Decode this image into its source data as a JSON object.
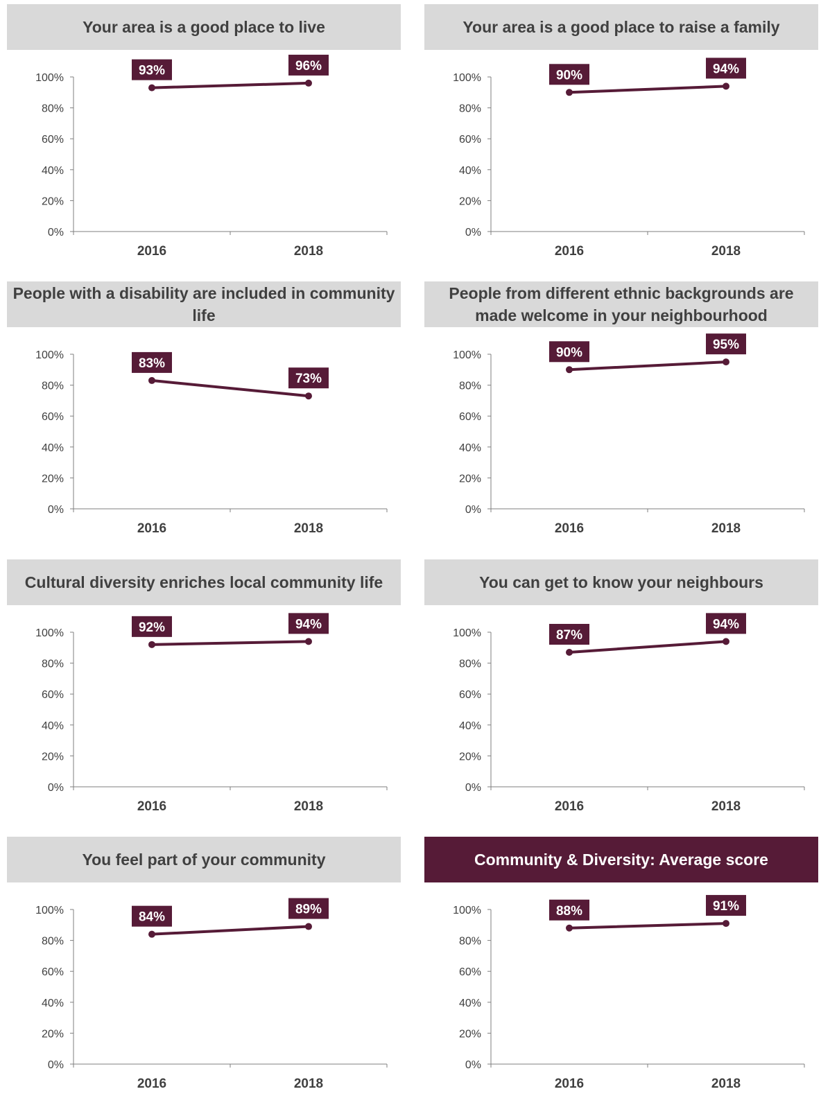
{
  "colors": {
    "series": "#561b37",
    "header_bg": "#d9d9d9",
    "header_highlight_bg": "#561b37",
    "axis": "#7f7f7f",
    "text": "#404040"
  },
  "chart_data": [
    {
      "type": "line",
      "title": "Your area is a good place to live",
      "categories": [
        "2016",
        "2018"
      ],
      "values": [
        93,
        96
      ],
      "data_labels": [
        "93%",
        "96%"
      ],
      "ylim": [
        0,
        100
      ],
      "yticks": [
        "0%",
        "20%",
        "40%",
        "60%",
        "80%",
        "100%"
      ],
      "grid": false,
      "highlight": false
    },
    {
      "type": "line",
      "title": "Your area is a good place to raise a family",
      "categories": [
        "2016",
        "2018"
      ],
      "values": [
        90,
        94
      ],
      "data_labels": [
        "90%",
        "94%"
      ],
      "ylim": [
        0,
        100
      ],
      "yticks": [
        "0%",
        "20%",
        "40%",
        "60%",
        "80%",
        "100%"
      ],
      "grid": false,
      "highlight": false
    },
    {
      "type": "line",
      "title": "People with a disability are included in community life",
      "categories": [
        "2016",
        "2018"
      ],
      "values": [
        83,
        73
      ],
      "data_labels": [
        "83%",
        "73%"
      ],
      "ylim": [
        0,
        100
      ],
      "yticks": [
        "0%",
        "20%",
        "40%",
        "60%",
        "80%",
        "100%"
      ],
      "grid": false,
      "highlight": false
    },
    {
      "type": "line",
      "title": "People from different ethnic backgrounds are made welcome in your neighbourhood",
      "categories": [
        "2016",
        "2018"
      ],
      "values": [
        90,
        95
      ],
      "data_labels": [
        "90%",
        "95%"
      ],
      "ylim": [
        0,
        100
      ],
      "yticks": [
        "0%",
        "20%",
        "40%",
        "60%",
        "80%",
        "100%"
      ],
      "grid": false,
      "highlight": false
    },
    {
      "type": "line",
      "title": "Cultural diversity enriches local community life",
      "categories": [
        "2016",
        "2018"
      ],
      "values": [
        92,
        94
      ],
      "data_labels": [
        "92%",
        "94%"
      ],
      "ylim": [
        0,
        100
      ],
      "yticks": [
        "0%",
        "20%",
        "40%",
        "60%",
        "80%",
        "100%"
      ],
      "grid": false,
      "highlight": false
    },
    {
      "type": "line",
      "title": "You can get to know your neighbours",
      "categories": [
        "2016",
        "2018"
      ],
      "values": [
        87,
        94
      ],
      "data_labels": [
        "87%",
        "94%"
      ],
      "ylim": [
        0,
        100
      ],
      "yticks": [
        "0%",
        "20%",
        "40%",
        "60%",
        "80%",
        "100%"
      ],
      "grid": false,
      "highlight": false
    },
    {
      "type": "line",
      "title": "You feel part of your community",
      "categories": [
        "2016",
        "2018"
      ],
      "values": [
        84,
        89
      ],
      "data_labels": [
        "84%",
        "89%"
      ],
      "ylim": [
        0,
        100
      ],
      "yticks": [
        "0%",
        "20%",
        "40%",
        "60%",
        "80%",
        "100%"
      ],
      "grid": false,
      "highlight": false
    },
    {
      "type": "line",
      "title": "Community & Diversity: Average score",
      "categories": [
        "2016",
        "2018"
      ],
      "values": [
        88,
        91
      ],
      "data_labels": [
        "88%",
        "91%"
      ],
      "ylim": [
        0,
        100
      ],
      "yticks": [
        "0%",
        "20%",
        "40%",
        "60%",
        "80%",
        "100%"
      ],
      "grid": false,
      "highlight": true
    }
  ]
}
